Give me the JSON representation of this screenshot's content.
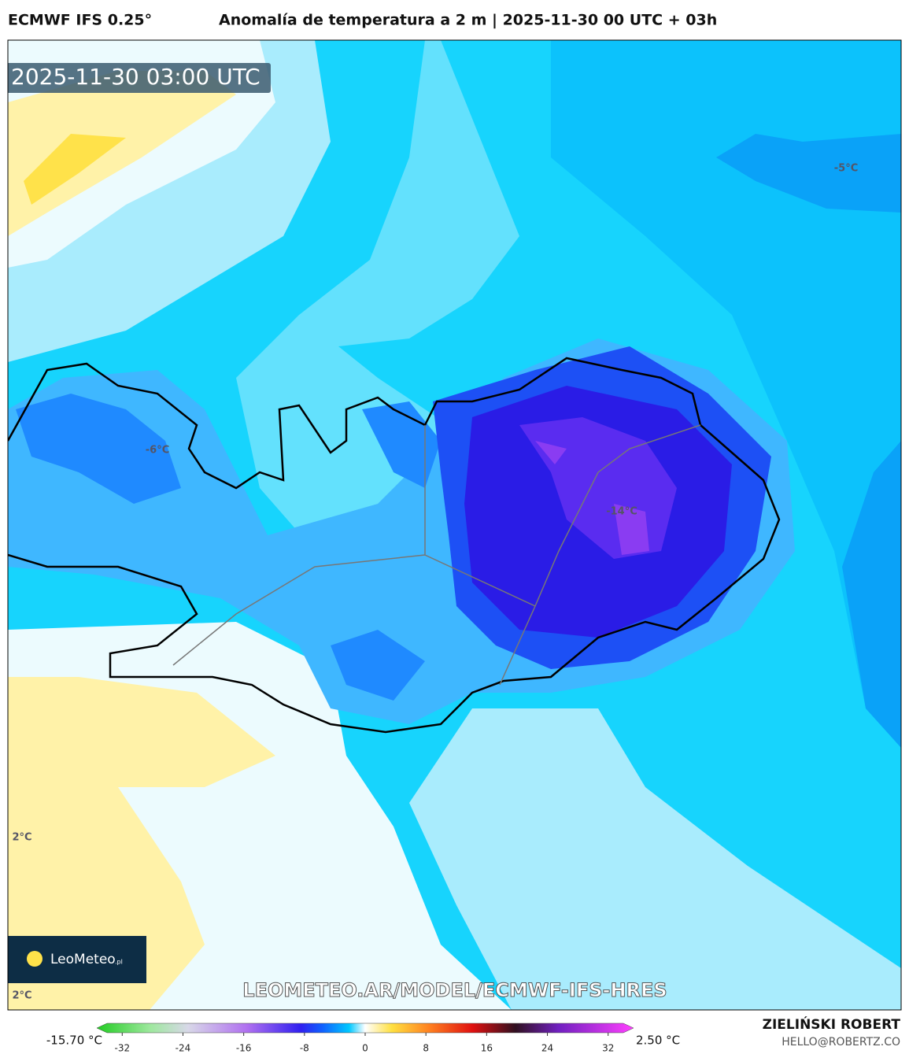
{
  "header": {
    "model": "ECMWF IFS 0.25°",
    "title": "Anomalía de temperatura a 2 m | 2025-11-30 00 UTC + 03h"
  },
  "map": {
    "timestamp": "2025-11-30 03:00 UTC",
    "contour_labels": [
      "-5°C",
      "-6°C",
      "-14°C",
      "2°C",
      "2°C"
    ],
    "logo": "LeoMeteo",
    "logo_suffix": ".pl",
    "watermark": "LEOMETEO.AR/MODEL/ECMWF-IFS-HRES"
  },
  "footer": {
    "author": "ZIELIŃSKI ROBERT",
    "email": "HELLO@ROBERTZ.CO"
  },
  "colorbar": {
    "min_label": "-15.70 °C",
    "max_label": "2.50 °C",
    "ticks": [
      -32,
      -24,
      -16,
      -8,
      0,
      8,
      16,
      24,
      32
    ],
    "range": [
      -34,
      34
    ]
  }
}
